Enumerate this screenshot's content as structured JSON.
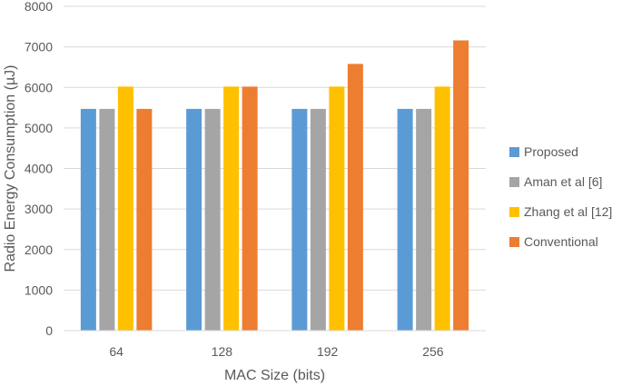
{
  "chart_data": {
    "type": "bar",
    "title": "",
    "xlabel": "MAC Size (bits)",
    "ylabel": "Radio Energy Consumption (µJ)",
    "ylim": [
      0,
      8000
    ],
    "yticks": [
      0,
      1000,
      2000,
      3000,
      4000,
      5000,
      6000,
      7000,
      8000
    ],
    "categories": [
      "64",
      "128",
      "192",
      "256"
    ],
    "grid": true,
    "legend_position": "right",
    "series": [
      {
        "name": "Proposed",
        "color": "#5b9bd5",
        "values": [
          5470,
          5470,
          5470,
          5470
        ]
      },
      {
        "name": "Aman et al [6]",
        "color": "#a5a5a5",
        "values": [
          5470,
          5470,
          5470,
          5470
        ]
      },
      {
        "name": "Zhang et al [12]",
        "color": "#ffc000",
        "values": [
          6020,
          6020,
          6020,
          6020
        ]
      },
      {
        "name": "Conventional",
        "color": "#ed7d31",
        "values": [
          5470,
          6020,
          6580,
          7160
        ]
      }
    ]
  }
}
